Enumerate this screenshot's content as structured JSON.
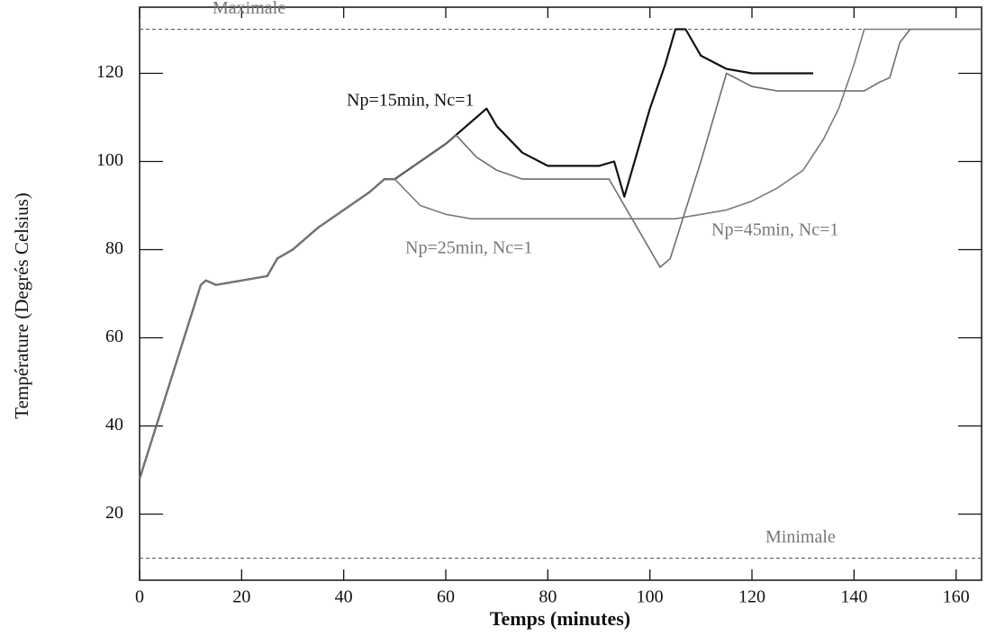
{
  "chart_data": {
    "type": "line",
    "xlabel": "Temps (minutes)",
    "ylabel": "Température (Degrés Celsius)",
    "xlim": [
      0,
      165
    ],
    "ylim": [
      5,
      135
    ],
    "xticks": [
      0,
      20,
      40,
      60,
      80,
      100,
      120,
      140,
      160
    ],
    "yticks": [
      20,
      40,
      60,
      80,
      100,
      120
    ],
    "reference_lines": [
      {
        "label": "Maximale",
        "value": 130
      },
      {
        "label": "Minimale",
        "value": 10
      }
    ],
    "series": [
      {
        "name": "Np=15min, Nc=1",
        "color": "#111111",
        "x": [
          0,
          12,
          13,
          15,
          20,
          25,
          27,
          30,
          35,
          40,
          45,
          48,
          50,
          55,
          60,
          63,
          66,
          68,
          70,
          75,
          80,
          85,
          90,
          93,
          95,
          100,
          103,
          105,
          107,
          110,
          115,
          120,
          125,
          132
        ],
        "values": [
          28,
          72,
          73,
          72,
          73,
          74,
          78,
          80,
          85,
          89,
          93,
          96,
          96,
          100,
          104,
          107,
          110,
          112,
          108,
          102,
          99,
          99,
          99,
          100,
          92,
          112,
          122,
          130,
          130,
          124,
          121,
          120,
          120,
          120
        ]
      },
      {
        "name": "Np=25min, Nc=1",
        "color": "#6e6e6e",
        "x": [
          0,
          12,
          13,
          15,
          20,
          25,
          27,
          30,
          35,
          40,
          45,
          48,
          50,
          55,
          60,
          62,
          66,
          70,
          75,
          80,
          90,
          92,
          95,
          100,
          102,
          104,
          110,
          115,
          120,
          125,
          135,
          140,
          142,
          145,
          147,
          149,
          151,
          165
        ],
        "values": [
          28,
          72,
          73,
          72,
          73,
          74,
          78,
          80,
          85,
          89,
          93,
          96,
          96,
          100,
          104,
          106,
          101,
          98,
          96,
          96,
          96,
          96,
          90,
          80,
          76,
          78,
          100,
          120,
          117,
          116,
          116,
          116,
          116,
          118,
          119,
          127,
          130,
          130
        ]
      },
      {
        "name": "Np=45min, Nc=1",
        "color": "#7a7a7a",
        "x": [
          0,
          12,
          13,
          15,
          20,
          25,
          27,
          30,
          35,
          40,
          45,
          48,
          50,
          55,
          60,
          65,
          70,
          80,
          90,
          100,
          105,
          110,
          115,
          120,
          125,
          130,
          134,
          137,
          140,
          142,
          165
        ],
        "values": [
          28,
          72,
          73,
          72,
          73,
          74,
          78,
          80,
          85,
          89,
          93,
          96,
          96,
          90,
          88,
          87,
          87,
          87,
          87,
          87,
          87,
          88,
          89,
          91,
          94,
          98,
          105,
          112,
          122,
          130,
          130
        ]
      }
    ]
  }
}
